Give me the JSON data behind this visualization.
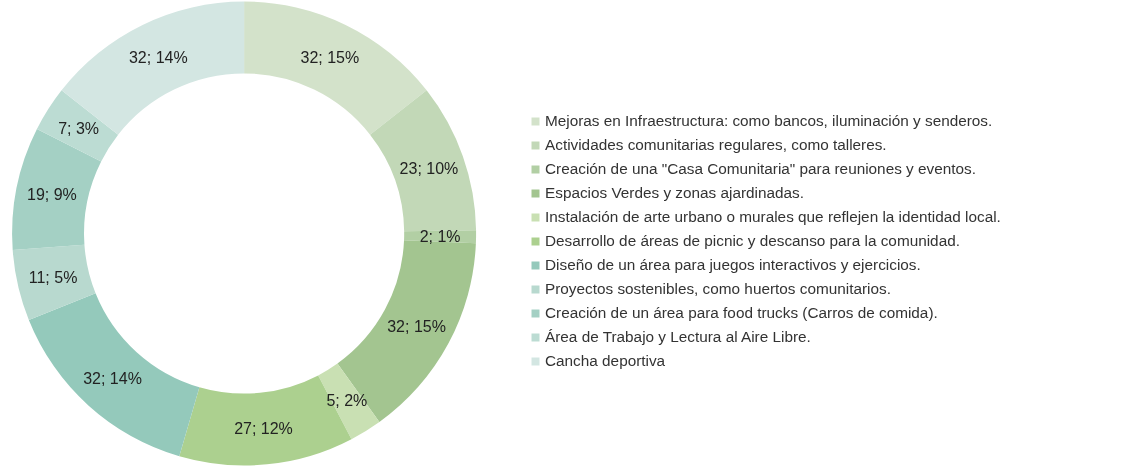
{
  "chart_data": {
    "type": "donut",
    "categories": [
      "Mejoras en Infraestructura: como bancos, iluminación y senderos.",
      "Actividades comunitarias regulares, como talleres.",
      "Creación de una \"Casa Comunitaria\" para reuniones y eventos.",
      "Espacios Verdes y zonas ajardinadas.",
      "Instalación de arte urbano o murales que reflejen la identidad local.",
      "Desarrollo de áreas de picnic y descanso para la comunidad.",
      "Diseño de un área para juegos interactivos y ejercicios.",
      "Proyectos sostenibles, como huertos comunitarios.",
      "Creación de un área para food trucks (Carros de comida).",
      "Área de Trabajo y Lectura al Aire Libre.",
      "Cancha deportiva"
    ],
    "values": [
      32,
      23,
      2,
      32,
      5,
      27,
      32,
      11,
      19,
      7,
      32
    ],
    "value_labels": [
      "32; 15%",
      "23; 10%",
      "2; 1%",
      "32; 15%",
      "5; 2%",
      "27; 12%",
      "32; 14%",
      "11; 5%",
      "19; 9%",
      "7; 3%",
      "32; 14%"
    ],
    "colors": [
      "#d3e2ca",
      "#c2d8b7",
      "#b2cfa4",
      "#a3c590",
      "#c9e0b3",
      "#acd08f",
      "#94c9bb",
      "#b8d9cf",
      "#a4d0c4",
      "#bcdcd3",
      "#d3e6e2"
    ],
    "legend": "right"
  }
}
